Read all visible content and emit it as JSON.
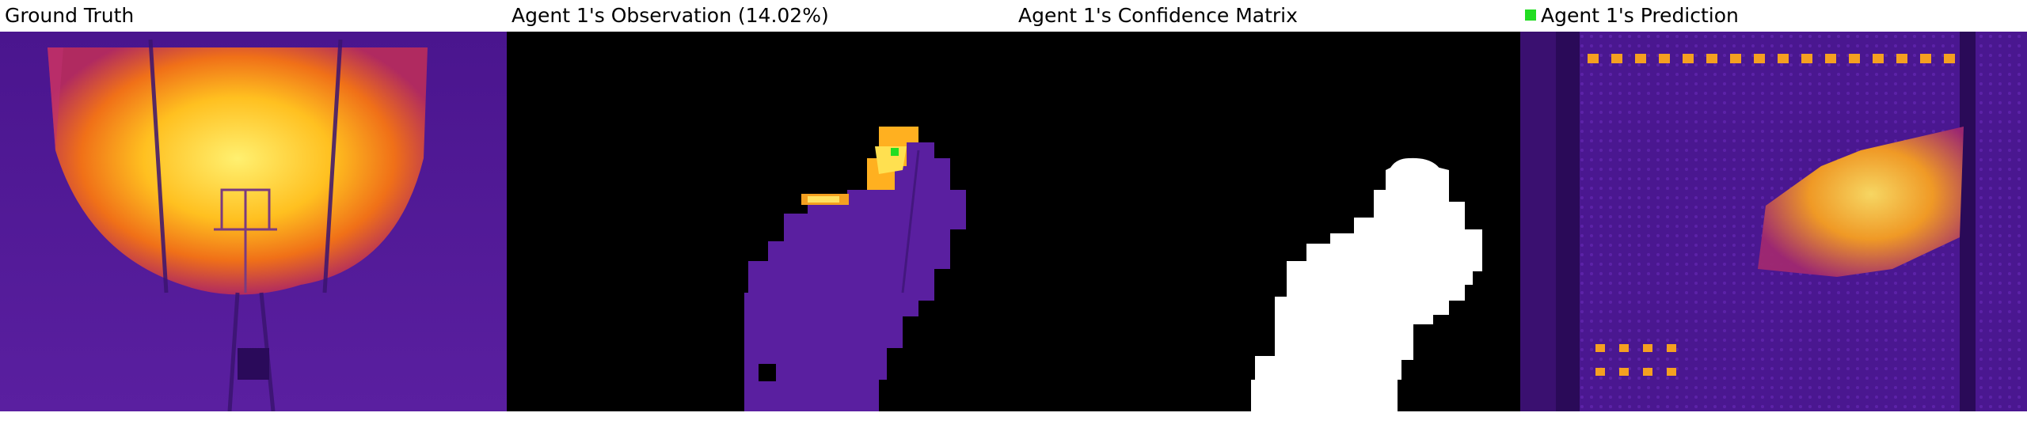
{
  "panels": [
    {
      "title": "Ground Truth"
    },
    {
      "title": "Agent 1's Observation (14.02%)"
    },
    {
      "title": "Agent 1's Confidence Matrix"
    },
    {
      "title": "Agent 1's Prediction"
    }
  ],
  "legend": {
    "marker_color": "#22dd22"
  },
  "colors": {
    "dark_purple": "#3a0a78",
    "purple": "#5a1aa0",
    "hot_orange": "#f08a14",
    "hot_yellow": "#ffe040",
    "black": "#000000",
    "white": "#ffffff"
  }
}
